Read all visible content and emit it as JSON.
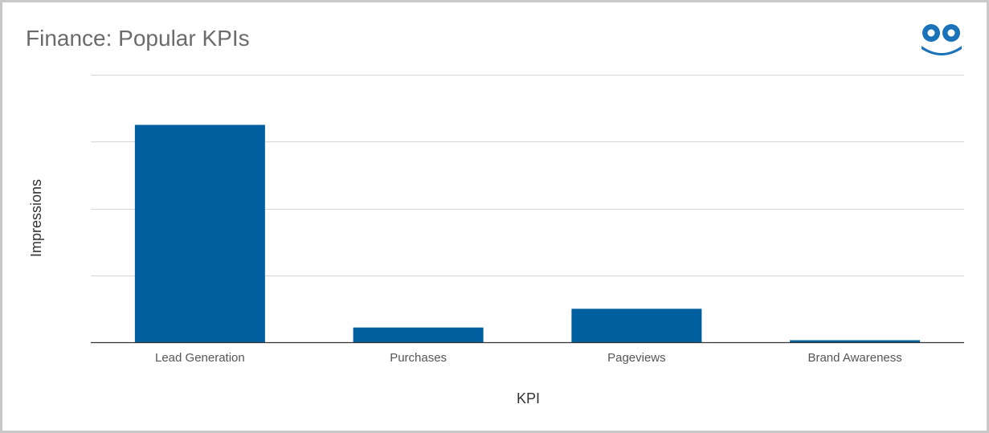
{
  "colors": {
    "bar": "#005f9e",
    "logo": "#1a73b8",
    "grid": "#d7d7d7",
    "axis": "#333333"
  },
  "logo_icon": "smiley-face-logo-icon",
  "chart_data": {
    "type": "bar",
    "title": "Finance: Popular KPIs",
    "xlabel": "KPI",
    "ylabel": "Impressions",
    "categories": [
      "Lead Generation",
      "Purchases",
      "Pageviews",
      "Brand Awareness"
    ],
    "values": [
      3.25,
      0.22,
      0.5,
      0.03
    ],
    "ylim": [
      0,
      4
    ],
    "y_gridlines": [
      0,
      1,
      2,
      3,
      4
    ],
    "y_tick_labels_shown": false,
    "grid": true,
    "legend": "none"
  }
}
